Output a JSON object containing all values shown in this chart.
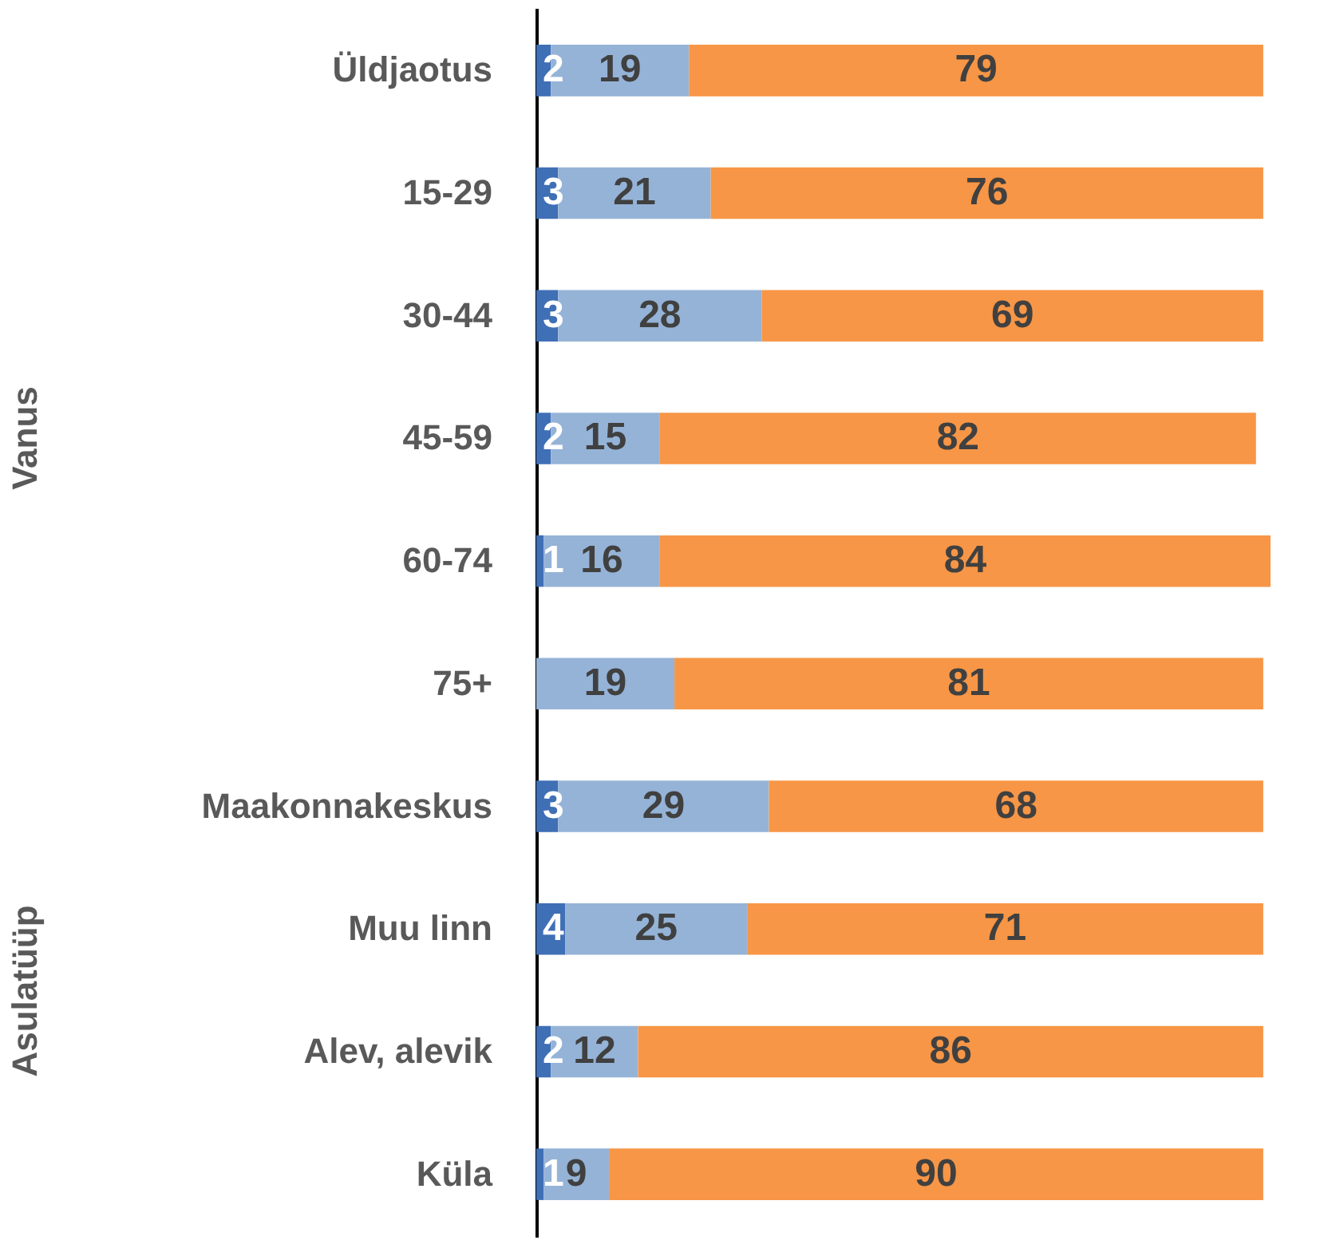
{
  "chart_data": {
    "type": "bar",
    "orientation": "horizontal",
    "stacked": true,
    "tick_labels": "y",
    "legend": false,
    "xlim": [
      0,
      101
    ],
    "categories": [
      "Üldjaotus",
      "15-29",
      "30-44",
      "45-59",
      "60-74",
      "75+",
      "Maakonnakeskus",
      "Muu linn",
      "Alev, alevik",
      "Küla"
    ],
    "series": [
      {
        "color": "#3f6fb5",
        "values": [
          2,
          3,
          3,
          2,
          1,
          0,
          3,
          4,
          2,
          1
        ],
        "value_labels": [
          "2",
          "3",
          "3",
          "2",
          "1",
          null,
          "3",
          "4",
          "2",
          "1"
        ]
      },
      {
        "color": "#95b3d7",
        "values": [
          19,
          21,
          28,
          15,
          16,
          19,
          29,
          25,
          12,
          9
        ],
        "value_labels": [
          "19",
          "21",
          "28",
          "15",
          "16",
          "19",
          "29",
          "25",
          "12",
          "9"
        ]
      },
      {
        "color": "#f79646",
        "values": [
          79,
          76,
          69,
          82,
          84,
          81,
          68,
          71,
          86,
          90
        ],
        "value_labels": [
          "79",
          "76",
          "69",
          "82",
          "84",
          "81",
          "68",
          "71",
          "86",
          "90"
        ]
      }
    ],
    "annotations": [
      "Vanus",
      "Asulatüüp"
    ]
  }
}
